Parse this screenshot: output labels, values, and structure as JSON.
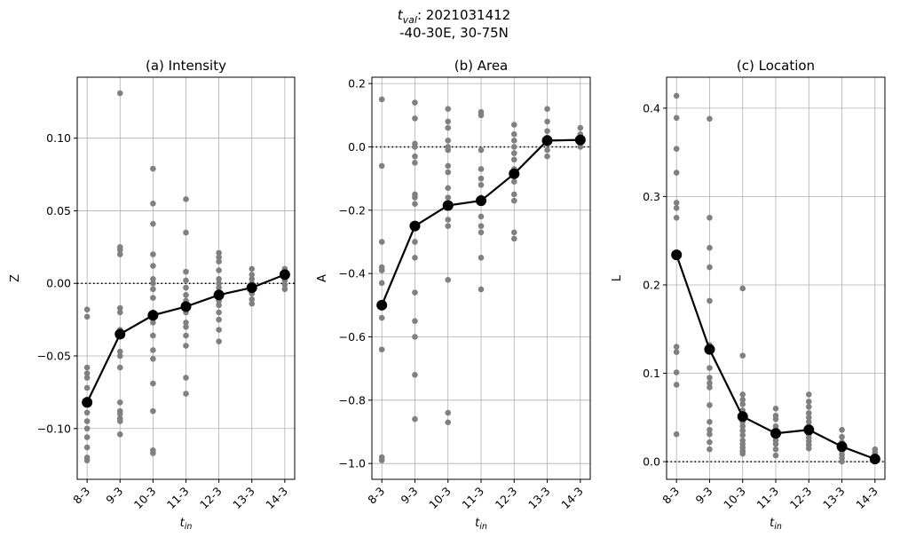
{
  "figure": {
    "suptitle_line1": "t",
    "suptitle_sub": "val",
    "suptitle_value": ": 2021031412",
    "suptitle_line2": "-40-30E, 30-75N",
    "xlabel_main": "t",
    "xlabel_sub": "in"
  },
  "colors": {
    "scatter": "#808080",
    "mean": "#000000",
    "grid": "#b0b0b0"
  },
  "chart_data": [
    {
      "type": "scatter",
      "title": "(a) Intensity",
      "ylabel": "Z",
      "categories": [
        "8-3",
        "9-3",
        "10-3",
        "11-3",
        "12-3",
        "13-3",
        "14-3"
      ],
      "ylim": [
        -0.135,
        0.142
      ],
      "yticks": [
        -0.1,
        -0.05,
        0.0,
        0.05,
        0.1
      ],
      "ytick_labels": [
        "−0.10",
        "−0.05",
        "0.00",
        "0.05",
        "0.10"
      ],
      "zero_line": 0,
      "grid": true,
      "scatter": [
        [
          -0.018,
          -0.023,
          -0.058,
          -0.062,
          -0.065,
          -0.072,
          -0.08,
          -0.089,
          -0.095,
          -0.1,
          -0.106,
          -0.113,
          -0.12,
          -0.122
        ],
        [
          0.131,
          0.025,
          0.023,
          0.02,
          -0.017,
          -0.02,
          -0.032,
          -0.047,
          -0.05,
          -0.058,
          -0.082,
          -0.088,
          -0.09,
          -0.093,
          -0.095,
          -0.104
        ],
        [
          0.079,
          0.055,
          0.041,
          0.02,
          0.012,
          0.003,
          0.0,
          -0.004,
          -0.01,
          -0.02,
          -0.027,
          -0.036,
          -0.046,
          -0.052,
          -0.069,
          -0.088,
          -0.115,
          -0.117
        ],
        [
          0.058,
          0.035,
          0.008,
          0.002,
          -0.003,
          -0.008,
          -0.012,
          -0.016,
          -0.02,
          -0.027,
          -0.03,
          -0.036,
          -0.043,
          -0.065,
          -0.076
        ],
        [
          0.021,
          0.018,
          0.015,
          0.009,
          0.003,
          0.0,
          -0.003,
          -0.008,
          -0.012,
          -0.015,
          -0.02,
          -0.025,
          -0.032,
          -0.04
        ],
        [
          0.01,
          0.006,
          0.003,
          0.0,
          -0.003,
          -0.007,
          -0.011,
          -0.014
        ],
        [
          0.01,
          0.008,
          0.005,
          0.002,
          -0.001,
          -0.004
        ]
      ],
      "mean": [
        -0.082,
        -0.035,
        -0.022,
        -0.016,
        -0.008,
        -0.003,
        0.006
      ]
    },
    {
      "type": "scatter",
      "title": "(b) Area",
      "ylabel": "A",
      "categories": [
        "8-3",
        "9-3",
        "10-3",
        "11-3",
        "12-3",
        "13-3",
        "14-3"
      ],
      "ylim": [
        -1.05,
        0.22
      ],
      "yticks": [
        -1.0,
        -0.8,
        -0.6,
        -0.4,
        -0.2,
        0.0,
        0.2
      ],
      "ytick_labels": [
        "−1.0",
        "−0.8",
        "−0.6",
        "−0.4",
        "−0.2",
        "0.0",
        "0.2"
      ],
      "zero_line": 0,
      "grid": true,
      "scatter": [
        [
          0.15,
          -0.06,
          -0.3,
          -0.38,
          -0.39,
          -0.43,
          -0.5,
          -0.54,
          -0.64,
          -0.98,
          -0.99
        ],
        [
          0.14,
          0.09,
          0.01,
          0.0,
          -0.03,
          -0.05,
          -0.15,
          -0.16,
          -0.18,
          -0.25,
          -0.3,
          -0.35,
          -0.46,
          -0.55,
          -0.6,
          -0.72,
          -0.86
        ],
        [
          0.12,
          0.08,
          0.06,
          0.02,
          0.0,
          -0.01,
          -0.06,
          -0.08,
          -0.13,
          -0.16,
          -0.19,
          -0.23,
          -0.25,
          -0.42,
          -0.84,
          -0.87
        ],
        [
          0.11,
          0.1,
          -0.01,
          -0.07,
          -0.1,
          -0.12,
          -0.16,
          -0.22,
          -0.25,
          -0.27,
          -0.35,
          -0.45
        ],
        [
          0.07,
          0.04,
          0.02,
          0.0,
          -0.02,
          -0.04,
          -0.07,
          -0.09,
          -0.11,
          -0.15,
          -0.17,
          -0.27,
          -0.29
        ],
        [
          0.12,
          0.08,
          0.05,
          0.03,
          0.01,
          -0.01,
          -0.03
        ],
        [
          0.06,
          0.04,
          0.02,
          0.01,
          0.0
        ]
      ],
      "mean": [
        -0.5,
        -0.25,
        -0.185,
        -0.17,
        -0.085,
        0.02,
        0.022
      ]
    },
    {
      "type": "scatter",
      "title": "(c) Location",
      "ylabel": "L",
      "categories": [
        "8-3",
        "9-3",
        "10-3",
        "11-3",
        "12-3",
        "13-3",
        "14-3"
      ],
      "ylim": [
        -0.02,
        0.435
      ],
      "yticks": [
        0.0,
        0.1,
        0.2,
        0.3,
        0.4
      ],
      "ytick_labels": [
        "0.0",
        "0.1",
        "0.2",
        "0.3",
        "0.4"
      ],
      "zero_line": 0,
      "grid": true,
      "scatter": [
        [
          0.414,
          0.389,
          0.354,
          0.327,
          0.293,
          0.287,
          0.276,
          0.13,
          0.124,
          0.101,
          0.087,
          0.031
        ],
        [
          0.388,
          0.276,
          0.242,
          0.22,
          0.182,
          0.132,
          0.106,
          0.095,
          0.089,
          0.084,
          0.064,
          0.045,
          0.036,
          0.031,
          0.022,
          0.014
        ],
        [
          0.196,
          0.12,
          0.076,
          0.07,
          0.065,
          0.058,
          0.05,
          0.045,
          0.04,
          0.035,
          0.03,
          0.024,
          0.02,
          0.016,
          0.012,
          0.009
        ],
        [
          0.06,
          0.052,
          0.048,
          0.04,
          0.036,
          0.032,
          0.028,
          0.024,
          0.02,
          0.014,
          0.007
        ],
        [
          0.076,
          0.068,
          0.062,
          0.055,
          0.05,
          0.045,
          0.04,
          0.036,
          0.031,
          0.027,
          0.023,
          0.019,
          0.015
        ],
        [
          0.036,
          0.028,
          0.022,
          0.017,
          0.012,
          0.008,
          0.004,
          0.0
        ],
        [
          0.014,
          0.01,
          0.006,
          0.003
        ]
      ],
      "mean": [
        0.234,
        0.127,
        0.051,
        0.032,
        0.036,
        0.017,
        0.003
      ]
    }
  ]
}
